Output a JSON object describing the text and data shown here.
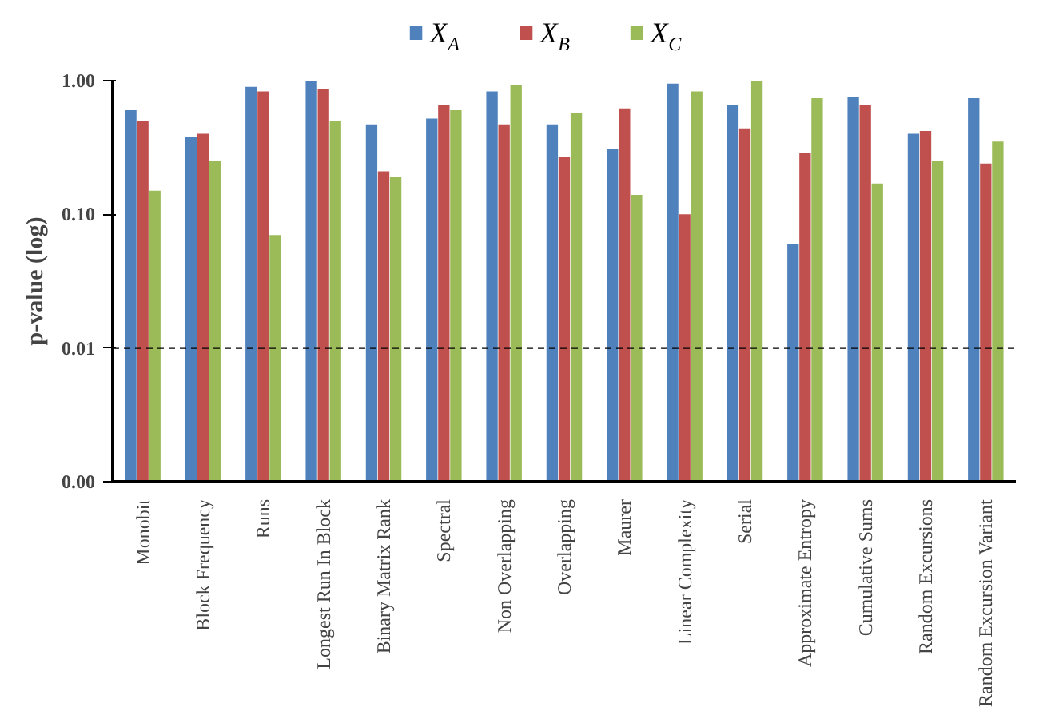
{
  "chart_data": {
    "type": "bar",
    "ylabel": "p-value (log)",
    "categories": [
      "Monobit",
      "Block Frequency",
      "Runs",
      "Longest Run In Block",
      "Binary Matrix Rank",
      "Spectral",
      "Non Overlapping",
      "Overlapping",
      "Maurer",
      "Linear Complexity",
      "Serial",
      "Approximate Entropy",
      "Cumulative Sums",
      "Random Excursions",
      "Random Excursion Variant"
    ],
    "series": [
      {
        "name": "X$_{A}$",
        "color": "#4f81bd",
        "values": [
          0.6,
          0.38,
          0.9,
          1.0,
          0.47,
          0.52,
          0.83,
          0.47,
          0.31,
          0.95,
          0.66,
          0.06,
          0.75,
          0.4,
          0.74
        ]
      },
      {
        "name": "X$_{B}$",
        "color": "#c0504d",
        "values": [
          0.5,
          0.4,
          0.83,
          0.87,
          0.21,
          0.66,
          0.47,
          0.27,
          0.62,
          0.1,
          0.44,
          0.29,
          0.66,
          0.42,
          0.24
        ]
      },
      {
        "name": "X$_{C}$",
        "color": "#9bbb59",
        "values": [
          0.15,
          0.25,
          0.07,
          0.5,
          0.19,
          0.6,
          0.92,
          0.57,
          0.14,
          0.83,
          1.0,
          0.74,
          0.17,
          0.25,
          0.35
        ]
      }
    ],
    "log": "y",
    "ylim": [
      0.001,
      1
    ],
    "yticks": [
      {
        "value": 0.001,
        "label": "0.00"
      },
      {
        "value": 0.01,
        "label": "0.01"
      },
      {
        "value": 0.1,
        "label": "0.10"
      },
      {
        "value": 1,
        "label": "1.00"
      }
    ],
    "ref_lines": [
      {
        "axis": "y",
        "value": 0.01,
        "label": null,
        "color": "#000000",
        "line_style": "dashed"
      }
    ],
    "grid": false,
    "legend": "top"
  }
}
